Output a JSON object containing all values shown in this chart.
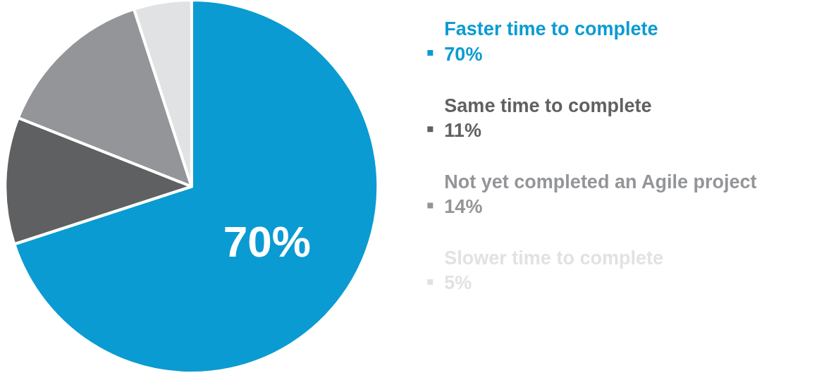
{
  "chart_data": {
    "type": "pie",
    "categories": [
      "Faster time to complete\n70%",
      "Same time to complete\n11%",
      "Not yet completed an Agile project\n14%",
      "Slower time to complete\n5%"
    ],
    "values": [
      70,
      11,
      14,
      5
    ],
    "colors": [
      "#0a9bd2",
      "#5f6062",
      "#939598",
      "#e1e2e4"
    ],
    "value_labels": [
      "70%",
      null,
      null,
      null
    ],
    "legend": "right"
  }
}
